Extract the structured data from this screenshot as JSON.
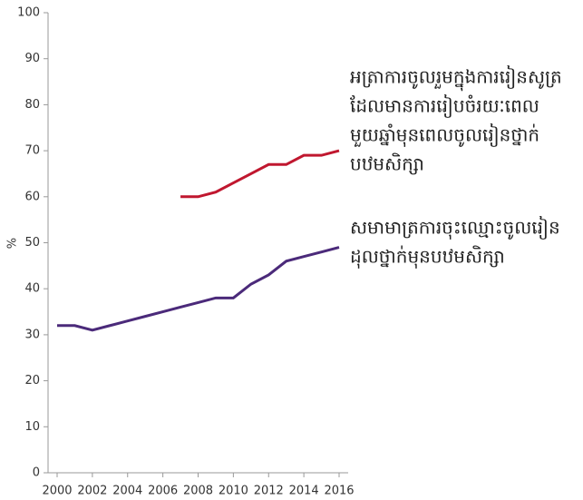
{
  "chart_data": {
    "type": "line",
    "x": [
      2000,
      2001,
      2002,
      2003,
      2004,
      2005,
      2006,
      2007,
      2008,
      2009,
      2010,
      2011,
      2012,
      2013,
      2014,
      2015,
      2016
    ],
    "series": [
      {
        "name_lines": [
          "អត្រាការចូលរួមក្នុងការរៀនសូត្រ",
          "ដែលមានការរៀបចំរយៈពេល",
          "មួយឆ្នាំមុនពេលចូលរៀនថ្នាក់",
          "បឋមសិក្សា"
        ],
        "color": "#c0172f",
        "values": [
          null,
          null,
          null,
          null,
          null,
          null,
          null,
          60,
          60,
          61,
          63,
          65,
          67,
          67,
          69,
          69,
          70
        ]
      },
      {
        "name_lines": [
          "សមាមាត្រការចុះឈ្មោះចូលរៀន",
          "ដុលថ្នាក់មុនបឋមសិក្សា"
        ],
        "color": "#4b2a7a",
        "values": [
          32,
          32,
          31,
          32,
          33,
          34,
          35,
          36,
          37,
          38,
          38,
          41,
          43,
          46,
          47,
          48,
          49
        ]
      }
    ],
    "y_label": "%",
    "xlim": [
      2000,
      2016
    ],
    "xticks": [
      2000,
      2002,
      2004,
      2006,
      2008,
      2010,
      2012,
      2014,
      2016
    ],
    "ylim": [
      0,
      100
    ],
    "yticks": [
      0,
      10,
      20,
      30,
      40,
      50,
      60,
      70,
      80,
      90,
      100
    ]
  }
}
